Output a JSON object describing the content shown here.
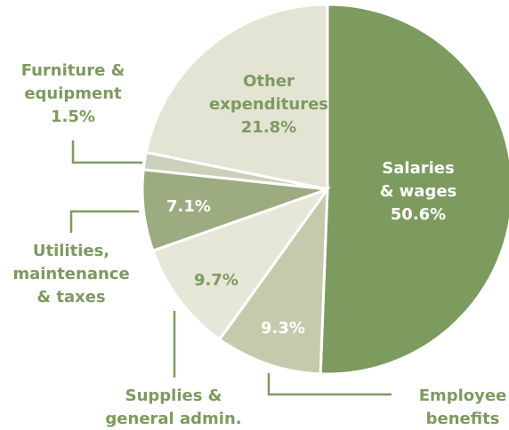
{
  "chart_data": {
    "type": "pie",
    "categories": [
      [
        "Salaries",
        "& wages"
      ],
      [
        "Employee",
        "benefits"
      ],
      [
        "Supplies &",
        "general admin."
      ],
      [
        "Utilities,",
        "maintenance",
        "& taxes"
      ],
      [
        "Furniture &",
        "equipment"
      ],
      [
        "Other",
        "expenditures"
      ]
    ],
    "values": [
      50.6,
      9.3,
      9.7,
      7.1,
      1.5,
      21.8
    ],
    "value_labels": [
      "50.6%",
      "9.3%",
      "9.7%",
      "7.1%",
      "1.5%",
      "21.8%"
    ],
    "colors": [
      "#7d9a5f",
      "#c3cbac",
      "#e7e7d9",
      "#9cab80",
      "#cbd1b8",
      "#e4e4d4"
    ]
  }
}
